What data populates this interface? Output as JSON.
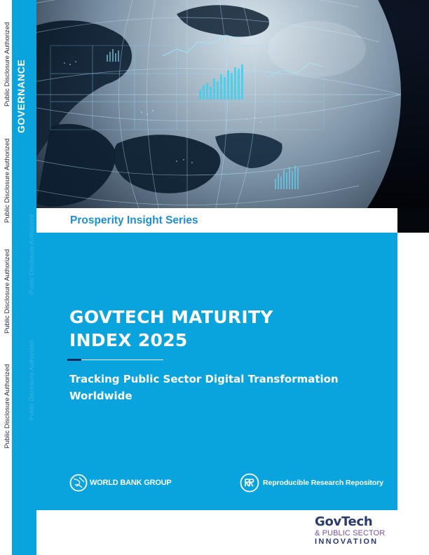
{
  "spine": {
    "disclosure_labels": [
      "Public Disclosure Authorized",
      "Public Disclosure Authorized",
      "Public Disclosure Authorized",
      "Public Disclosure Authorized"
    ],
    "category": "GOVERNANCE"
  },
  "cover": {
    "series": "Prosperity Insight Series",
    "title": "GOVTECH MATURITY INDEX 2025",
    "subtitle": "Tracking Public Sector Digital Transformation Worldwide"
  },
  "logos": {
    "world_bank": "WORLD BANK GROUP",
    "repository": "Reproducible Research Repository",
    "govtech_name": "GovTech",
    "govtech_line2": "& PUBLIC SECTOR",
    "govtech_line3": "INNOVATION"
  },
  "colors": {
    "panel_blue": "#09a4dd",
    "series_blue": "#1a8fd4",
    "navy": "#0b2b5c",
    "govtech_purple": "#7b4fa3"
  }
}
